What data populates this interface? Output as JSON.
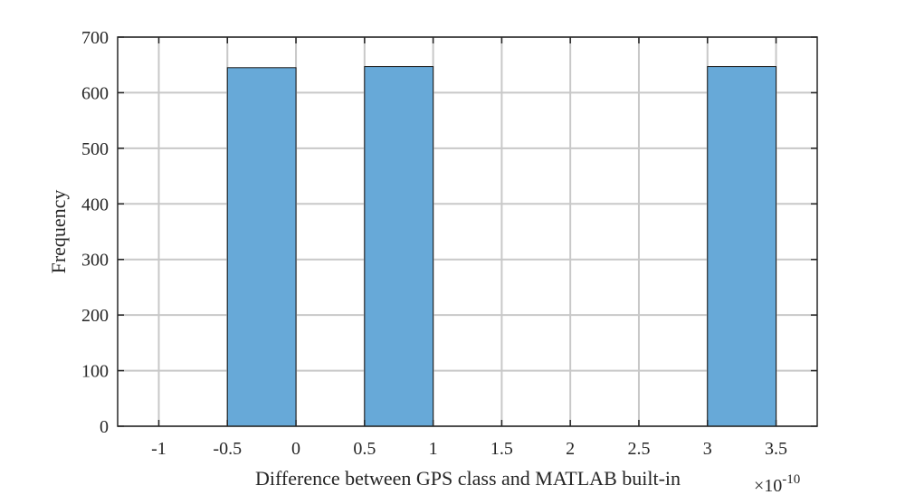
{
  "chart_data": {
    "type": "bar",
    "title": "",
    "xlabel": "Difference between GPS class and MATLAB built-in",
    "ylabel": "Frequency",
    "x_exponent": {
      "base": "×10",
      "power": "-10"
    },
    "xlim": [
      -1.3,
      3.8
    ],
    "ylim": [
      0,
      700
    ],
    "grid": true,
    "xticks": [
      -1,
      -0.5,
      0,
      0.5,
      1,
      1.5,
      2,
      2.5,
      3,
      3.5
    ],
    "xtick_labels": [
      "-1",
      "-0.5",
      "0",
      "0.5",
      "1",
      "1.5",
      "2",
      "2.5",
      "3",
      "3.5"
    ],
    "yticks": [
      0,
      100,
      200,
      300,
      400,
      500,
      600,
      700
    ],
    "ytick_labels": [
      "0",
      "100",
      "200",
      "300",
      "400",
      "500",
      "600",
      "700"
    ],
    "bin_width": 0.5,
    "bins": [
      {
        "start": -0.5,
        "end": 0,
        "value": 645
      },
      {
        "start": 0.5,
        "end": 1,
        "value": 647
      },
      {
        "start": 3,
        "end": 3.5,
        "value": 647
      }
    ],
    "colors": {
      "bar_fill": "#67a9d8",
      "bar_edge": "#1a1a1a",
      "grid": "#c8c8c8",
      "axis": "#262626"
    }
  }
}
